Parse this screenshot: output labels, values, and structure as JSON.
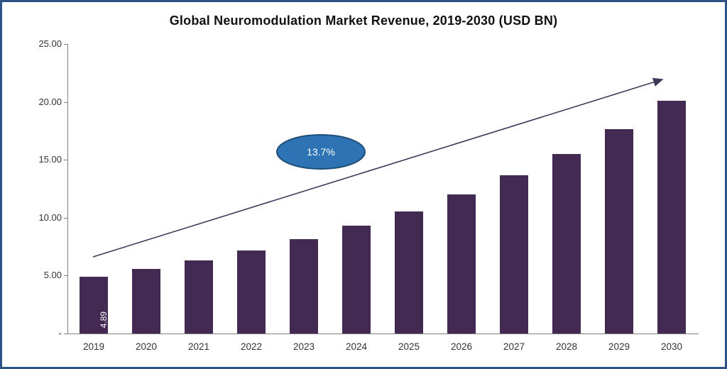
{
  "title": "Global Neuromodulation Market Revenue, 2019-2030 (USD BN)",
  "chart_data": {
    "type": "bar",
    "title": "Global Neuromodulation Market Revenue, 2019-2030 (USD BN)",
    "categories": [
      "2019",
      "2020",
      "2021",
      "2022",
      "2023",
      "2024",
      "2025",
      "2026",
      "2027",
      "2028",
      "2029",
      "2030"
    ],
    "values": [
      4.89,
      5.56,
      6.32,
      7.19,
      8.17,
      9.29,
      10.56,
      12.01,
      13.65,
      15.52,
      17.65,
      20.07
    ],
    "bar_value_labels": {
      "0": "4.89"
    },
    "xlabel": "",
    "ylabel": "",
    "ylim": [
      0,
      25
    ],
    "ytick_labels": [
      "25.00",
      "20.00",
      "15.00",
      "10.00",
      "5.00",
      "-"
    ],
    "ytick_values": [
      25,
      20,
      15,
      10,
      5,
      0
    ],
    "grid": false,
    "legend": "none",
    "annotation": {
      "cagr_label": "13.7%"
    },
    "colors": {
      "bar": "#422a52",
      "ellipse_fill": "#2e74b5",
      "ellipse_stroke": "#1f4e79",
      "arrow": "#3f3a5a",
      "axis": "#808080",
      "frame_border": "#2e5487"
    }
  }
}
